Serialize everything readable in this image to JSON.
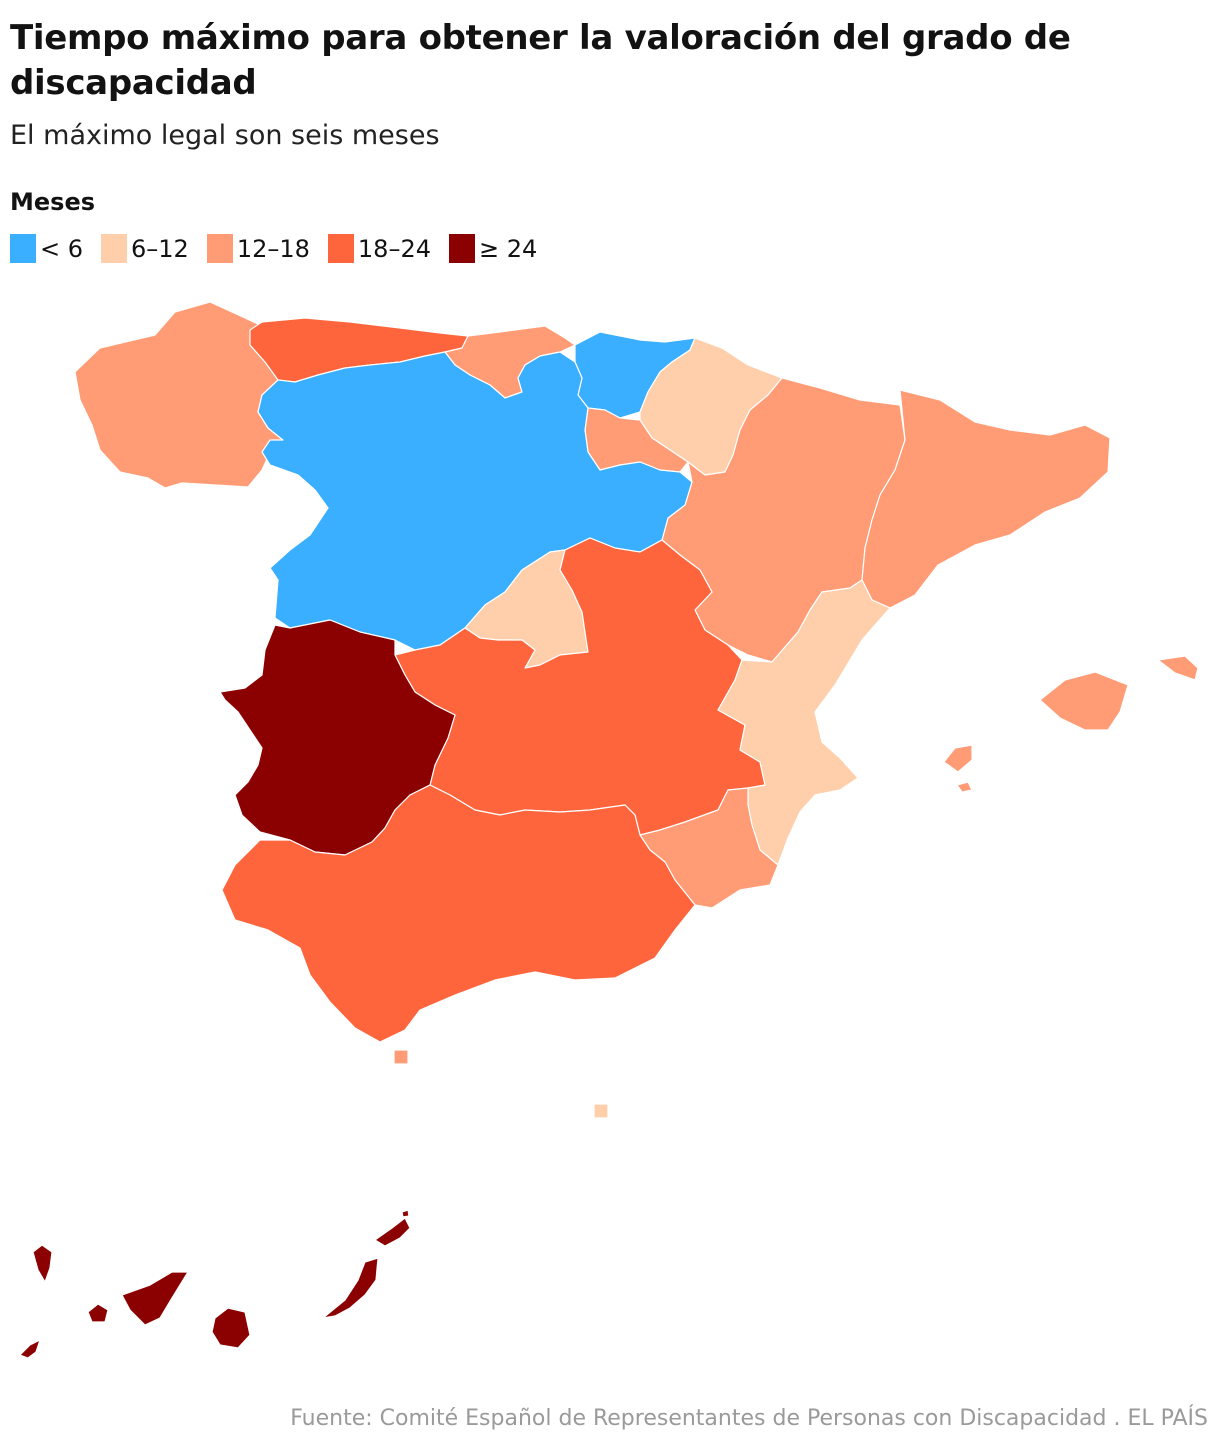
{
  "title": "Tiempo máximo para obtener la valoración del grado de discapacidad",
  "subtitle": "El máximo legal son seis meses",
  "legend": {
    "title": "Meses",
    "items": [
      {
        "label": "< 6",
        "color": "#3aaeff"
      },
      {
        "label": "6–12",
        "color": "#ffcfab"
      },
      {
        "label": "12–18",
        "color": "#ff9c75"
      },
      {
        "label": "18–24",
        "color": "#ff653d"
      },
      {
        "label": "≥ 24",
        "color": "#8b0000"
      }
    ]
  },
  "regions": [
    {
      "name": "Galicia",
      "category": "12–18"
    },
    {
      "name": "Asturias",
      "category": "18–24"
    },
    {
      "name": "Cantabria",
      "category": "12–18"
    },
    {
      "name": "País Vasco",
      "category": "< 6"
    },
    {
      "name": "Navarra",
      "category": "6–12"
    },
    {
      "name": "La Rioja",
      "category": "12–18"
    },
    {
      "name": "Aragón",
      "category": "12–18"
    },
    {
      "name": "Cataluña",
      "category": "12–18"
    },
    {
      "name": "Castilla y León",
      "category": "< 6"
    },
    {
      "name": "Madrid",
      "category": "6–12"
    },
    {
      "name": "Castilla-La Mancha",
      "category": "18–24"
    },
    {
      "name": "Extremadura",
      "category": "≥ 24"
    },
    {
      "name": "Comunidad Valenciana",
      "category": "6–12"
    },
    {
      "name": "Murcia",
      "category": "12–18"
    },
    {
      "name": "Andalucía",
      "category": "18–24"
    },
    {
      "name": "Islas Baleares",
      "category": "12–18"
    },
    {
      "name": "Canarias",
      "category": "≥ 24"
    },
    {
      "name": "Ceuta",
      "category": "12–18"
    },
    {
      "name": "Melilla",
      "category": "6–12"
    }
  ],
  "source": {
    "text": "Fuente: Comité Español de Representantes de Personas con Discapacidad",
    "brand": "EL PAÍS"
  }
}
